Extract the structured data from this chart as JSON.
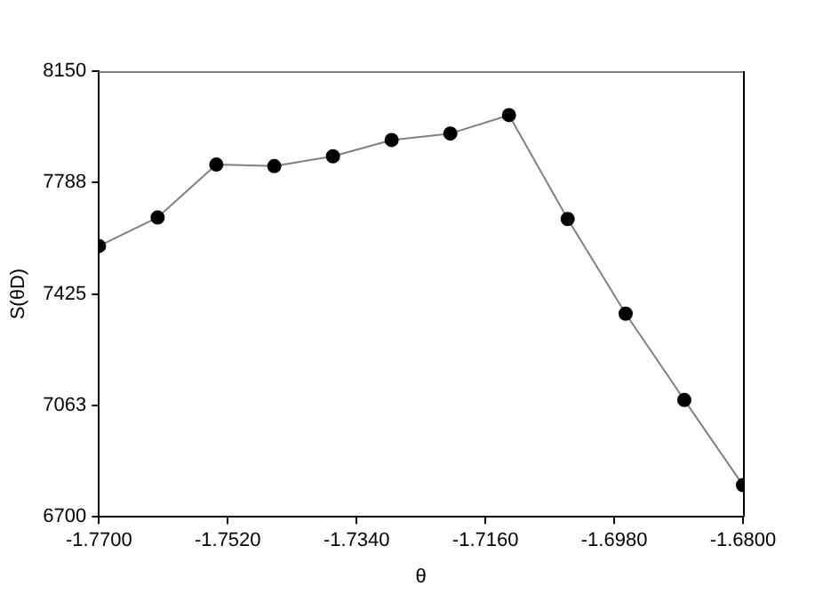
{
  "chart_data": {
    "type": "line",
    "xlabel": "θ",
    "ylabel": "S(θD)",
    "x": [
      -1.77,
      -1.7618,
      -1.7536,
      -1.7455,
      -1.7373,
      -1.7291,
      -1.7209,
      -1.7127,
      -1.7045,
      -1.6964,
      -1.6882,
      -1.68
    ],
    "series": [
      {
        "color": "#808080",
        "values": [
          7581,
          7674,
          7846,
          7841,
          7873,
          7926,
          7947,
          8007,
          7669,
          7361,
          7080,
          6803
        ]
      }
    ],
    "xlim": [
      -1.77,
      -1.68
    ],
    "xticks": [
      {
        "value": -1.77,
        "label": "-1.7700"
      },
      {
        "value": -1.752,
        "label": "-1.7520"
      },
      {
        "value": -1.734,
        "label": "-1.7340"
      },
      {
        "value": -1.716,
        "label": "-1.7160"
      },
      {
        "value": -1.698,
        "label": "-1.6980"
      },
      {
        "value": -1.68,
        "label": "-1.6800"
      }
    ],
    "ylim": [
      6700,
      8150
    ],
    "yticks": [
      6700,
      7063,
      7425,
      7788,
      8150
    ],
    "grid": false,
    "legend": false,
    "marker": "circle",
    "line_style": "solid"
  }
}
